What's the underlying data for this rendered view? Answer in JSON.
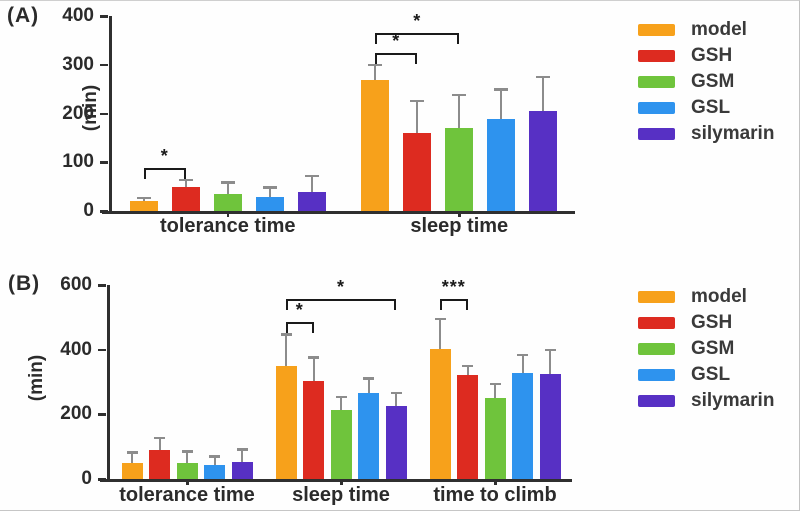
{
  "figure": {
    "background": "#ffffff"
  },
  "chart_data": [
    {
      "type": "bar",
      "panel_label": "(A)",
      "title": "",
      "xlabel": "",
      "ylabel": "(min)",
      "ylim": [
        0,
        400
      ],
      "yticks": [
        0,
        100,
        200,
        300,
        400
      ],
      "grid": false,
      "legend_position": "right",
      "categories": [
        "tolerance time",
        "sleep time"
      ],
      "series": [
        {
          "name": "model",
          "color": "#F7A11B",
          "values": [
            20,
            269
          ],
          "errors": [
            7,
            31
          ]
        },
        {
          "name": "GSH",
          "color": "#DD2B20",
          "values": [
            50,
            159
          ],
          "errors": [
            14,
            67
          ]
        },
        {
          "name": "GSM",
          "color": "#6FC43C",
          "values": [
            34,
            170
          ],
          "errors": [
            25,
            68
          ]
        },
        {
          "name": "GSL",
          "color": "#2E93EE",
          "values": [
            29,
            188
          ],
          "errors": [
            20,
            62
          ]
        },
        {
          "name": "silymarin",
          "color": "#5730C4",
          "values": [
            38,
            205
          ],
          "errors": [
            34,
            70
          ]
        }
      ],
      "annotations": [
        {
          "category": "tolerance time",
          "from": "model",
          "to": "GSH",
          "label": "*",
          "y": 88
        },
        {
          "category": "sleep time",
          "from": "model",
          "to": "GSH",
          "label": "*",
          "y": 324
        },
        {
          "category": "sleep time",
          "from": "model",
          "to": "GSM",
          "label": "*",
          "y": 365
        }
      ]
    },
    {
      "type": "bar",
      "panel_label": "(B)",
      "title": "",
      "xlabel": "",
      "ylabel": "(min)",
      "ylim": [
        0,
        600
      ],
      "yticks": [
        0,
        200,
        400,
        600
      ],
      "grid": false,
      "legend_position": "right",
      "categories": [
        "tolerance time",
        "sleep time",
        "time to climb"
      ],
      "series": [
        {
          "name": "model",
          "color": "#F7A11B",
          "values": [
            50,
            348,
            403
          ],
          "errors": [
            33,
            100,
            92
          ]
        },
        {
          "name": "GSH",
          "color": "#DD2B20",
          "values": [
            91,
            303,
            322
          ],
          "errors": [
            36,
            74,
            28
          ]
        },
        {
          "name": "GSM",
          "color": "#6FC43C",
          "values": [
            48,
            213,
            250
          ],
          "errors": [
            38,
            41,
            44
          ]
        },
        {
          "name": "GSL",
          "color": "#2E93EE",
          "values": [
            43,
            265,
            328
          ],
          "errors": [
            28,
            47,
            56
          ]
        },
        {
          "name": "silymarin",
          "color": "#5730C4",
          "values": [
            52,
            225,
            325
          ],
          "errors": [
            40,
            41,
            74
          ]
        }
      ],
      "annotations": [
        {
          "category": "sleep time",
          "from": "model",
          "to": "GSH",
          "label": "*",
          "y": 486
        },
        {
          "category": "sleep time",
          "from": "model",
          "to": "silymarin",
          "label": "*",
          "y": 557
        },
        {
          "category": "time to climb",
          "from": "model",
          "to": "GSH",
          "label": "***",
          "y": 557
        }
      ]
    }
  ]
}
